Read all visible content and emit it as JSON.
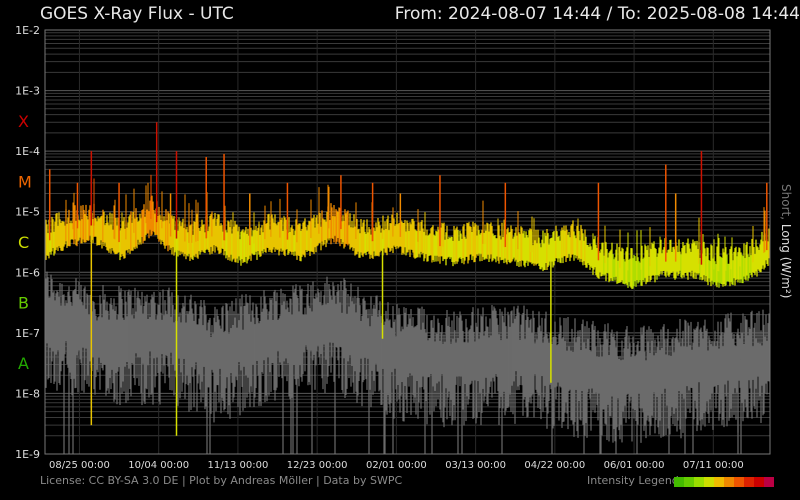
{
  "header": {
    "title": "GOES X-Ray Flux - UTC",
    "range": "From: 2024-08-07 14:44  /  To: 2025-08-08 14:44"
  },
  "footer": {
    "license": "License: CC BY-SA 3.0 DE | Plot by Andreas Möller | Data by SWPC",
    "legend_label": "Intensity Legend",
    "legend_colors": [
      "#44bb00",
      "#66cc00",
      "#99dd00",
      "#ccdd00",
      "#eebb00",
      "#ee8800",
      "#ee5500",
      "#dd2200",
      "#cc0000",
      "#bb0044"
    ]
  },
  "chart_data": {
    "type": "line",
    "title": "GOES X-Ray Flux - UTC",
    "ylabel": "Short, Long (W/m²)",
    "yscale": "log",
    "ylim": [
      1e-09,
      0.01
    ],
    "y_ticks": [
      "1E-2",
      "1E-3",
      "1E-4",
      "1E-5",
      "1E-6",
      "1E-7",
      "1E-8",
      "1E-9"
    ],
    "x_range": [
      "2024-08-07 14:44",
      "2025-08-08 14:44"
    ],
    "x_ticks": [
      "08/25 00:00",
      "10/04 00:00",
      "11/13 00:00",
      "12/23 00:00",
      "02/01 00:00",
      "03/13 00:00",
      "04/22 00:00",
      "06/01 00:00",
      "07/11 00:00"
    ],
    "class_labels": [
      {
        "label": "X",
        "color": "#cc0000"
      },
      {
        "label": "M",
        "color": "#ee6600"
      },
      {
        "label": "C",
        "color": "#ccdd00"
      },
      {
        "label": "B",
        "color": "#66cc00"
      },
      {
        "label": "A",
        "color": "#22aa00"
      }
    ],
    "series": [
      {
        "name": "Long",
        "color_mode": "intensity",
        "points": [
          [
            "2024-08-07",
            3e-06
          ],
          [
            "2024-08-20",
            5e-06
          ],
          [
            "2024-09-01",
            6e-06
          ],
          [
            "2024-09-15",
            3e-06
          ],
          [
            "2024-10-01",
            8e-06
          ],
          [
            "2024-10-09",
            4e-06
          ],
          [
            "2024-10-20",
            3e-06
          ],
          [
            "2024-11-01",
            4e-06
          ],
          [
            "2024-11-15",
            2.5e-06
          ],
          [
            "2024-12-01",
            4e-06
          ],
          [
            "2024-12-15",
            3e-06
          ],
          [
            "2025-01-01",
            6e-06
          ],
          [
            "2025-01-15",
            3e-06
          ],
          [
            "2025-02-01",
            4e-06
          ],
          [
            "2025-02-15",
            3e-06
          ],
          [
            "2025-03-01",
            2.5e-06
          ],
          [
            "2025-03-15",
            3e-06
          ],
          [
            "2025-04-01",
            2.5e-06
          ],
          [
            "2025-04-15",
            2e-06
          ],
          [
            "2025-05-01",
            3e-06
          ],
          [
            "2025-05-15",
            1.5e-06
          ],
          [
            "2025-06-01",
            1e-06
          ],
          [
            "2025-06-15",
            1.5e-06
          ],
          [
            "2025-07-01",
            1.5e-06
          ],
          [
            "2025-07-15",
            1e-06
          ],
          [
            "2025-08-01",
            1.5e-06
          ],
          [
            "2025-08-08",
            2.5e-06
          ]
        ],
        "flares": [
          [
            "2024-08-10",
            5e-05
          ],
          [
            "2024-08-24",
            3e-05
          ],
          [
            "2024-08-31",
            0.0001
          ],
          [
            "2024-09-14",
            3e-05
          ],
          [
            "2024-10-03",
            0.0003
          ],
          [
            "2024-10-10",
            2e-05
          ],
          [
            "2024-10-13",
            0.0001
          ],
          [
            "2024-10-28",
            8e-05
          ],
          [
            "2024-11-06",
            9e-05
          ],
          [
            "2024-11-19",
            2e-05
          ],
          [
            "2024-12-08",
            3e-05
          ],
          [
            "2025-01-04",
            4e-05
          ],
          [
            "2025-01-20",
            3e-05
          ],
          [
            "2025-02-03",
            2e-05
          ],
          [
            "2025-02-23",
            4e-05
          ],
          [
            "2025-03-28",
            3e-05
          ],
          [
            "2025-05-14",
            3e-05
          ],
          [
            "2025-06-17",
            6e-05
          ],
          [
            "2025-06-22",
            2e-05
          ],
          [
            "2025-07-05",
            0.0001
          ],
          [
            "2025-08-07",
            3e-05
          ]
        ]
      },
      {
        "name": "Short",
        "color": "#6b6b6b",
        "points": [
          [
            "2024-08-07",
            2e-07
          ],
          [
            "2024-09-01",
            1e-07
          ],
          [
            "2024-10-01",
            1e-07
          ],
          [
            "2024-10-09",
            1e-07
          ],
          [
            "2024-11-01",
            5e-08
          ],
          [
            "2024-12-01",
            1e-07
          ],
          [
            "2025-01-01",
            1.5e-07
          ],
          [
            "2025-02-01",
            5e-08
          ],
          [
            "2025-03-01",
            4e-08
          ],
          [
            "2025-04-01",
            5e-08
          ],
          [
            "2025-05-01",
            3e-08
          ],
          [
            "2025-06-01",
            2e-08
          ],
          [
            "2025-07-01",
            3e-08
          ],
          [
            "2025-08-08",
            4e-08
          ]
        ]
      }
    ]
  }
}
